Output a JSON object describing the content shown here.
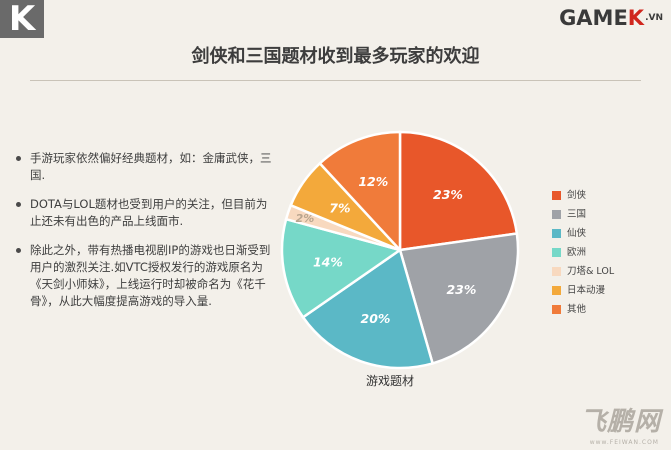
{
  "header": {
    "corner_letter": "K",
    "brand_main": "GAME",
    "brand_k": "K",
    "brand_suffix": ".VN"
  },
  "title": "剑侠和三国题材收到最多玩家的欢迎",
  "bullets": [
    "手游玩家依然偏好经典题材，如：金庸武侠，三国.",
    "DOTA与LOL题材也受到用户的关注，但目前为止还未有出色的产品上线面市.",
    "除此之外，带有热播电视剧IP的游戏也日渐受到用户的激烈关注.如VTC授权发行的游戏原名为《天剑小师妹》，上线运行时却被命名为《花千骨》，从此大幅度提高游戏的导入量."
  ],
  "chart_data": {
    "type": "pie",
    "xlabel": "游戏题材",
    "categories": [
      "剑侠",
      "三国",
      "仙侠",
      "欧洲",
      "刀塔& LOL",
      "日本动漫",
      "其他"
    ],
    "values": [
      23,
      23,
      20,
      14,
      2,
      7,
      12
    ],
    "value_labels": [
      "23%",
      "23%",
      "20%",
      "14%",
      "2%",
      "7%",
      "12%"
    ],
    "colors": [
      "#e8572a",
      "#9fa2a7",
      "#5bb8c6",
      "#76d8c8",
      "#f8d9bf",
      "#f3a93b",
      "#f07b3a"
    ],
    "legend_position": "right"
  },
  "watermark": {
    "text": "飞鹏网",
    "url": "www.FEIWAN.COM"
  }
}
